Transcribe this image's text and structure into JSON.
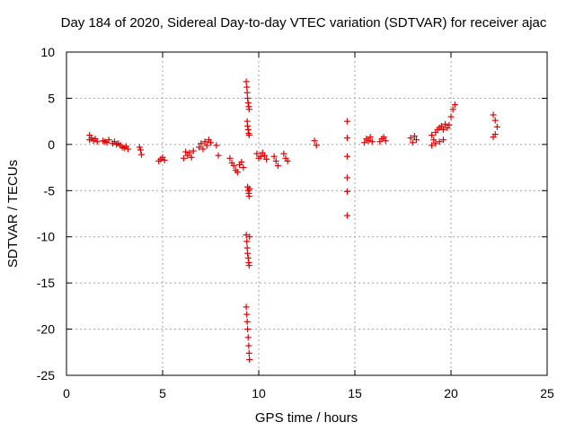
{
  "chart_data": {
    "type": "scatter",
    "title": "Day 184 of 2020, Sidereal Day-to-day VTEC variation (SDTVAR) for receiver ajac",
    "xlabel": "GPS time / hours",
    "ylabel": "SDTVAR / TECUs",
    "xlim": [
      0,
      25
    ],
    "ylim": [
      -25,
      10
    ],
    "xticks": [
      "0",
      "5",
      "10",
      "15",
      "20",
      "25"
    ],
    "yticks": [
      "10",
      "5",
      "0",
      "-5",
      "-10",
      "-15",
      "-20",
      "-25"
    ],
    "grid": true,
    "marker": "+",
    "marker_color": "#e00000",
    "series": [
      {
        "name": "SDTVAR",
        "x": [
          1.2,
          1.2,
          1.3,
          1.4,
          1.5,
          1.6,
          1.9,
          2.0,
          2.1,
          2.2,
          2.4,
          2.5,
          2.6,
          2.7,
          2.8,
          2.9,
          3.0,
          3.1,
          3.2,
          3.8,
          3.85,
          3.9,
          4.8,
          4.9,
          5.0,
          5.1,
          6.1,
          6.2,
          6.3,
          6.4,
          6.5,
          6.6,
          6.9,
          7.0,
          7.1,
          7.2,
          7.3,
          7.4,
          7.5,
          7.8,
          7.9,
          8.5,
          8.6,
          8.7,
          8.8,
          8.9,
          9.0,
          9.1,
          9.2,
          9.35,
          9.38,
          9.4,
          9.42,
          9.45,
          9.48,
          9.5,
          9.4,
          9.42,
          9.45,
          9.48,
          9.5,
          9.42,
          9.45,
          9.48,
          9.5,
          9.52,
          9.35,
          9.38,
          9.4,
          9.42,
          9.45,
          9.48,
          9.5,
          9.52,
          9.35,
          9.38,
          9.4,
          9.42,
          9.45,
          9.48,
          9.5,
          9.52,
          9.9,
          10.0,
          10.1,
          10.2,
          10.3,
          10.4,
          10.8,
          10.9,
          11.0,
          11.3,
          11.4,
          11.5,
          12.9,
          13.0,
          14.6,
          14.6,
          14.6,
          14.6,
          14.6,
          14.6,
          15.5,
          15.6,
          15.7,
          15.8,
          15.9,
          16.3,
          16.4,
          16.5,
          16.6,
          17.9,
          18.0,
          18.1,
          18.2,
          19.0,
          19.1,
          19.2,
          19.3,
          19.4,
          19.5,
          19.6,
          19.7,
          19.8,
          19.9,
          20.0,
          20.1,
          20.2,
          19.0,
          19.2,
          19.4,
          19.6,
          22.2,
          22.3,
          22.4,
          22.3,
          22.2
        ],
        "y": [
          1.0,
          0.5,
          0.7,
          0.4,
          0.6,
          0.3,
          0.4,
          0.3,
          0.2,
          0.5,
          0.1,
          0.3,
          0.0,
          0.1,
          -0.1,
          -0.3,
          -0.4,
          -0.2,
          -0.5,
          -0.3,
          -0.6,
          -1.1,
          -1.8,
          -1.6,
          -1.4,
          -1.7,
          -1.5,
          -0.8,
          -1.2,
          -0.9,
          -1.4,
          -0.7,
          -0.3,
          0.1,
          -0.5,
          0.3,
          -0.1,
          0.5,
          0.2,
          -0.1,
          -1.2,
          -1.5,
          -2.0,
          -2.3,
          -2.8,
          -3.0,
          -2.2,
          -1.9,
          -2.5,
          6.8,
          6.2,
          5.6,
          5.0,
          4.5,
          4.1,
          3.8,
          2.5,
          2.0,
          1.6,
          1.2,
          1.0,
          -4.6,
          -5.0,
          -5.3,
          -5.6,
          -4.8,
          -9.8,
          -10.5,
          -11.2,
          -11.8,
          -12.3,
          -12.8,
          -13.1,
          -10.0,
          -17.6,
          -18.4,
          -19.2,
          -20.0,
          -20.9,
          -21.8,
          -22.6,
          -23.3,
          -1.0,
          -1.5,
          -1.3,
          -0.9,
          -1.2,
          -1.6,
          -1.3,
          -1.8,
          -2.3,
          -1.0,
          -1.5,
          -1.8,
          0.4,
          -0.1,
          2.5,
          0.7,
          -1.3,
          -3.6,
          -5.1,
          -7.7,
          0.2,
          0.6,
          0.4,
          0.8,
          0.3,
          0.3,
          0.6,
          0.8,
          0.4,
          0.7,
          0.2,
          0.9,
          0.5,
          1.0,
          0.5,
          1.3,
          1.6,
          1.8,
          2.0,
          1.6,
          2.2,
          1.8,
          2.1,
          3.0,
          3.8,
          4.3,
          -0.1,
          0.1,
          0.3,
          0.5,
          3.2,
          2.6,
          1.9,
          1.1,
          0.8
        ]
      }
    ]
  }
}
